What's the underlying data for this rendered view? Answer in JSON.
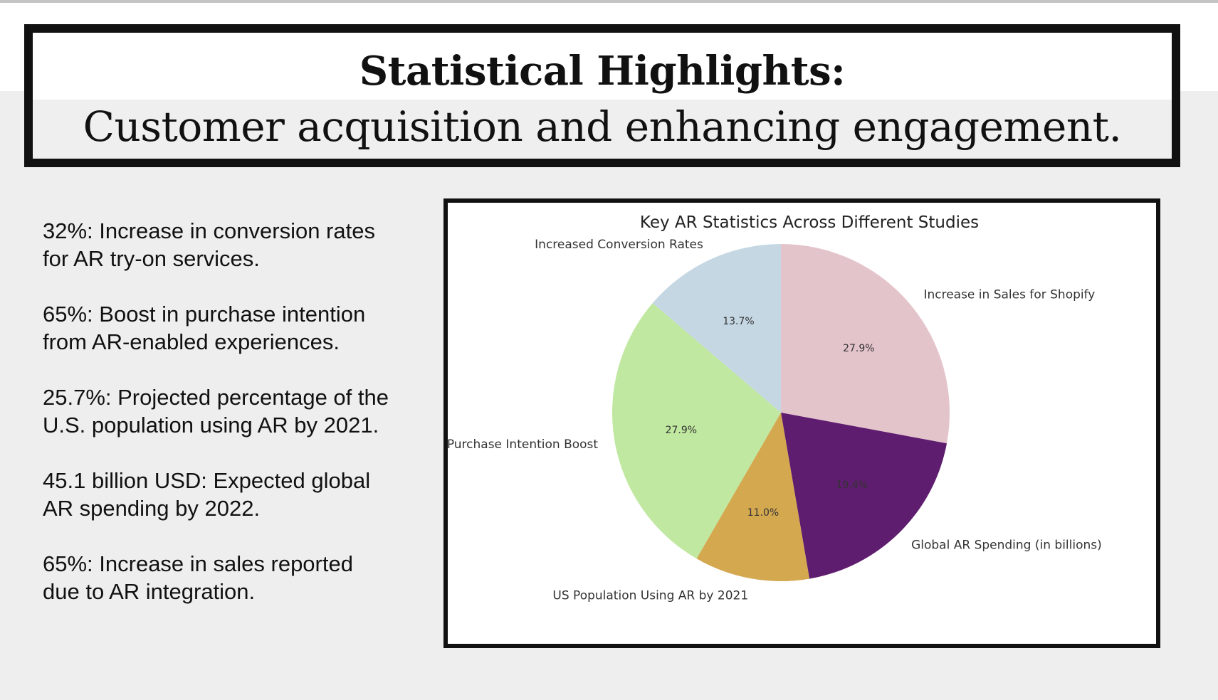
{
  "header": {
    "title": "Statistical Highlights:",
    "subtitle": "Customer acquisition and enhancing engagement."
  },
  "stats": [
    {
      "line1": "32%: Increase in conversion rates",
      "line2": "for AR try-on services."
    },
    {
      "line1": "65%: Boost in purchase intention",
      "line2": "from AR-enabled experiences."
    },
    {
      "line1": "25.7%: Projected percentage of the",
      "line2": "U.S. population using AR by 2021."
    },
    {
      "line1": "45.1 billion USD: Expected global",
      "line2": "AR spending by 2022."
    },
    {
      "line1": "65%: Increase in sales reported",
      "line2": "due to AR integration."
    }
  ],
  "colors": {
    "background": "#eeeeee",
    "frame": "#111111"
  },
  "chart_data": {
    "type": "pie",
    "title": "Key AR Statistics Across Different Studies",
    "start_angle_deg": 90,
    "direction": "clockwise",
    "slices": [
      {
        "label": "Increase in Sales for Shopify",
        "value": 65,
        "pct_label": "27.9%",
        "color": "#e4c4cb"
      },
      {
        "label": "Global AR Spending (in billions)",
        "value": 45.1,
        "pct_label": "19.4%",
        "color": "#5f1d6f"
      },
      {
        "label": "US Population Using AR by 2021",
        "value": 25.7,
        "pct_label": "11.0%",
        "color": "#d4a84f"
      },
      {
        "label": "Purchase Intention Boost",
        "value": 65,
        "pct_label": "27.9%",
        "color": "#c0e8a0"
      },
      {
        "label": "Increased Conversion Rates",
        "value": 32,
        "pct_label": "13.7%",
        "color": "#c5d7e3"
      }
    ]
  }
}
